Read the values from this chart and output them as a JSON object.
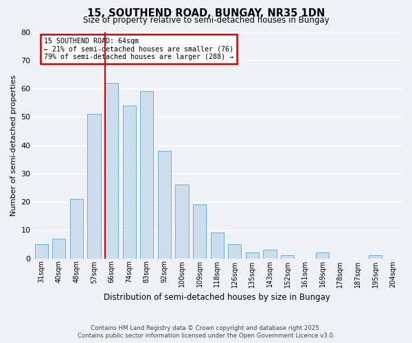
{
  "title": "15, SOUTHEND ROAD, BUNGAY, NR35 1DN",
  "subtitle": "Size of property relative to semi-detached houses in Bungay",
  "xlabel": "Distribution of semi-detached houses by size in Bungay",
  "ylabel": "Number of semi-detached properties",
  "categories": [
    "31sqm",
    "40sqm",
    "48sqm",
    "57sqm",
    "66sqm",
    "74sqm",
    "83sqm",
    "92sqm",
    "100sqm",
    "109sqm",
    "118sqm",
    "126sqm",
    "135sqm",
    "143sqm",
    "152sqm",
    "161sqm",
    "169sqm",
    "178sqm",
    "187sqm",
    "195sqm",
    "204sqm"
  ],
  "values": [
    5,
    7,
    21,
    51,
    62,
    54,
    59,
    38,
    26,
    19,
    9,
    5,
    2,
    3,
    1,
    0,
    2,
    0,
    0,
    1,
    0
  ],
  "bar_color": "#ccdded",
  "bar_edge_color": "#6aadd5",
  "vline_x_index": 4,
  "vline_color": "#cc0000",
  "annotation_title": "15 SOUTHEND ROAD: 64sqm",
  "annotation_line1": "← 21% of semi-detached houses are smaller (76)",
  "annotation_line2": "79% of semi-detached houses are larger (288) →",
  "annotation_box_color": "#ffffff",
  "annotation_edge_color": "#cc0000",
  "ylim": [
    0,
    80
  ],
  "yticks": [
    0,
    10,
    20,
    30,
    40,
    50,
    60,
    70,
    80
  ],
  "background_color": "#eef2f7",
  "grid_color": "#ffffff",
  "footer_line1": "Contains HM Land Registry data © Crown copyright and database right 2025.",
  "footer_line2": "Contains public sector information licensed under the Open Government Licence v3.0."
}
